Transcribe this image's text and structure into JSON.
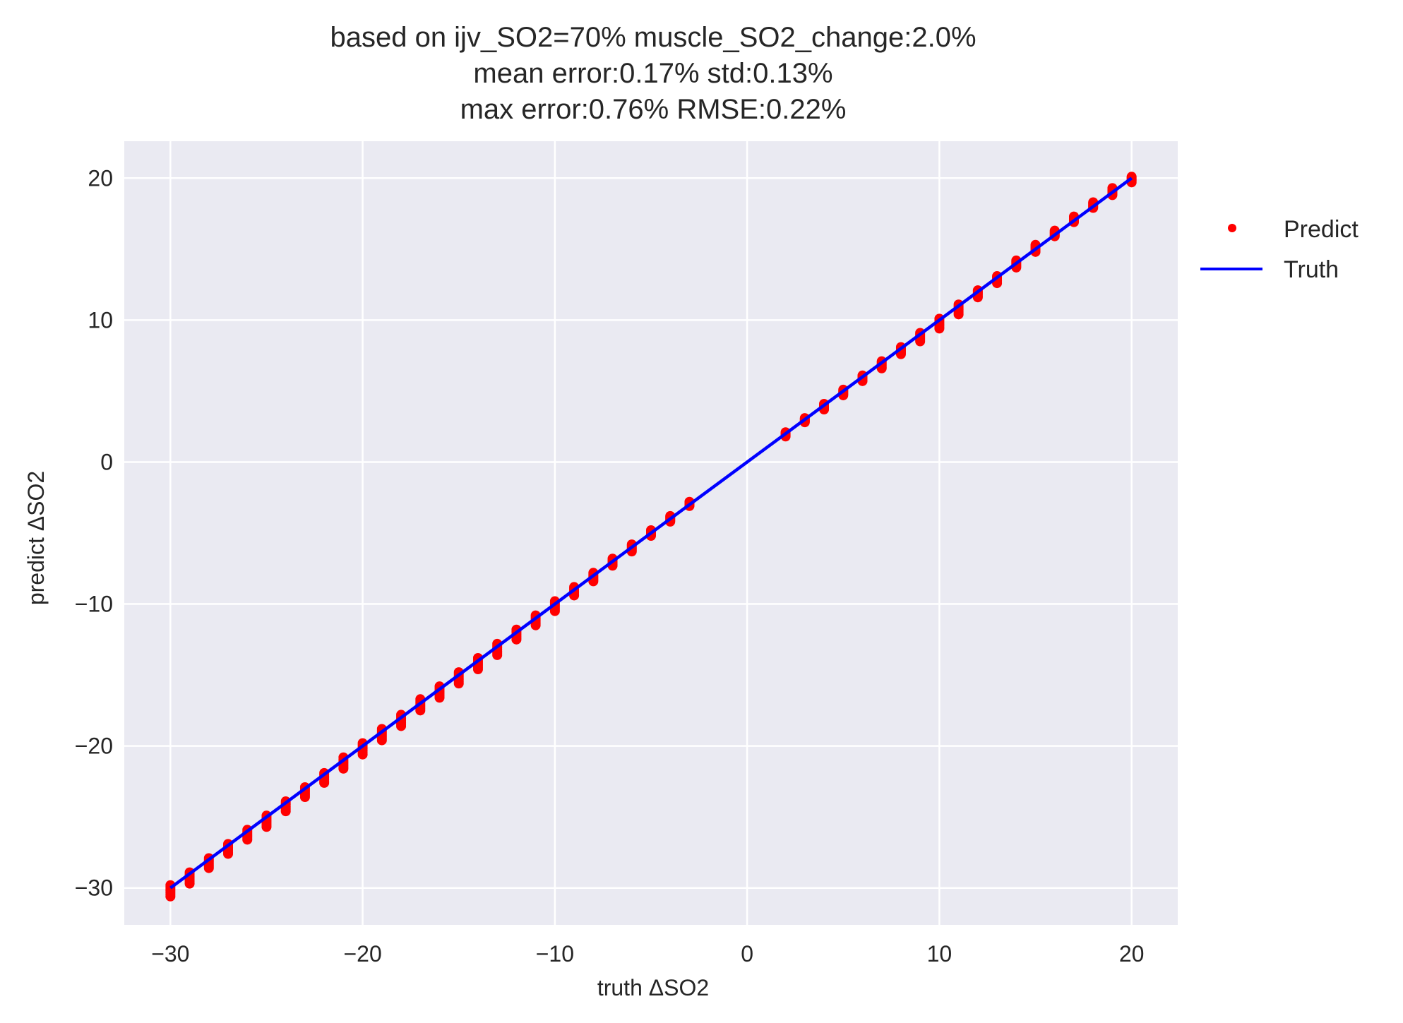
{
  "chart_data": {
    "type": "scatter",
    "title_lines": [
      "based on ijv_SO2=70% muscle_SO2_change:2.0%",
      "mean error:0.17% std:0.13%",
      "max error:0.76% RMSE:0.22%"
    ],
    "xlabel": "truth ΔSO2",
    "ylabel": "predict ΔSO2",
    "xlim": [
      -32.4,
      22.4
    ],
    "ylim": [
      -32.6,
      22.6
    ],
    "x_ticks": [
      -30,
      -20,
      -10,
      0,
      10,
      20
    ],
    "y_ticks": [
      -30,
      -20,
      -10,
      0,
      10,
      20
    ],
    "x_tick_labels": [
      "−30",
      "−20",
      "−10",
      "0",
      "10",
      "20"
    ],
    "y_tick_labels": [
      "−30",
      "−20",
      "−10",
      "0",
      "10",
      "20"
    ],
    "grid": true,
    "legend_position": "outside-right-top",
    "legend": [
      {
        "label": "Predict",
        "marker": "dot",
        "color": "#ff0000"
      },
      {
        "label": "Truth",
        "marker": "line",
        "color": "#0000ff"
      }
    ],
    "series": [
      {
        "name": "Predict",
        "kind": "scatter",
        "color": "#ff0000",
        "points": [
          {
            "x": -30,
            "y_range": [
              -30.6,
              -29.8
            ]
          },
          {
            "x": -29,
            "y_range": [
              -29.7,
              -28.9
            ]
          },
          {
            "x": -28,
            "y_range": [
              -28.6,
              -27.9
            ]
          },
          {
            "x": -27,
            "y_range": [
              -27.6,
              -26.9
            ]
          },
          {
            "x": -26,
            "y_range": [
              -26.6,
              -25.9
            ]
          },
          {
            "x": -25,
            "y_range": [
              -25.7,
              -24.9
            ]
          },
          {
            "x": -24,
            "y_range": [
              -24.6,
              -23.9
            ]
          },
          {
            "x": -23,
            "y_range": [
              -23.6,
              -22.9
            ]
          },
          {
            "x": -22,
            "y_range": [
              -22.6,
              -21.9
            ]
          },
          {
            "x": -21,
            "y_range": [
              -21.6,
              -20.8
            ]
          },
          {
            "x": -20,
            "y_range": [
              -20.6,
              -19.8
            ]
          },
          {
            "x": -19,
            "y_range": [
              -19.6,
              -18.8
            ]
          },
          {
            "x": -18,
            "y_range": [
              -18.6,
              -17.8
            ]
          },
          {
            "x": -17,
            "y_range": [
              -17.5,
              -16.7
            ]
          },
          {
            "x": -16,
            "y_range": [
              -16.6,
              -15.8
            ]
          },
          {
            "x": -15,
            "y_range": [
              -15.6,
              -14.8
            ]
          },
          {
            "x": -14,
            "y_range": [
              -14.6,
              -13.8
            ]
          },
          {
            "x": -13,
            "y_range": [
              -13.6,
              -12.8
            ]
          },
          {
            "x": -12,
            "y_range": [
              -12.5,
              -11.8
            ]
          },
          {
            "x": -11,
            "y_range": [
              -11.5,
              -10.8
            ]
          },
          {
            "x": -10,
            "y_range": [
              -10.5,
              -9.8
            ]
          },
          {
            "x": -9,
            "y_range": [
              -9.4,
              -8.8
            ]
          },
          {
            "x": -8,
            "y_range": [
              -8.4,
              -7.8
            ]
          },
          {
            "x": -7,
            "y_range": [
              -7.3,
              -6.8
            ]
          },
          {
            "x": -6,
            "y_range": [
              -6.3,
              -5.8
            ]
          },
          {
            "x": -5,
            "y_range": [
              -5.2,
              -4.8
            ]
          },
          {
            "x": -4,
            "y_range": [
              -4.2,
              -3.8
            ]
          },
          {
            "x": -3,
            "y_range": [
              -3.1,
              -2.8
            ]
          },
          {
            "x": 2,
            "y_range": [
              1.8,
              2.1
            ]
          },
          {
            "x": 3,
            "y_range": [
              2.8,
              3.1
            ]
          },
          {
            "x": 4,
            "y_range": [
              3.7,
              4.1
            ]
          },
          {
            "x": 5,
            "y_range": [
              4.7,
              5.1
            ]
          },
          {
            "x": 6,
            "y_range": [
              5.7,
              6.1
            ]
          },
          {
            "x": 7,
            "y_range": [
              6.6,
              7.1
            ]
          },
          {
            "x": 8,
            "y_range": [
              7.6,
              8.1
            ]
          },
          {
            "x": 9,
            "y_range": [
              8.5,
              9.1
            ]
          },
          {
            "x": 10,
            "y_range": [
              9.4,
              10.1
            ]
          },
          {
            "x": 11,
            "y_range": [
              10.4,
              11.1
            ]
          },
          {
            "x": 12,
            "y_range": [
              11.6,
              12.1
            ]
          },
          {
            "x": 13,
            "y_range": [
              12.6,
              13.1
            ]
          },
          {
            "x": 14,
            "y_range": [
              13.7,
              14.2
            ]
          },
          {
            "x": 15,
            "y_range": [
              14.8,
              15.3
            ]
          },
          {
            "x": 16,
            "y_range": [
              15.9,
              16.3
            ]
          },
          {
            "x": 17,
            "y_range": [
              16.9,
              17.3
            ]
          },
          {
            "x": 18,
            "y_range": [
              17.9,
              18.3
            ]
          },
          {
            "x": 19,
            "y_range": [
              18.8,
              19.3
            ]
          },
          {
            "x": 20,
            "y_range": [
              19.7,
              20.1
            ]
          }
        ]
      },
      {
        "name": "Truth",
        "kind": "line",
        "color": "#0000ff",
        "x": [
          -30,
          20
        ],
        "y": [
          -30,
          20
        ]
      }
    ]
  },
  "style": {
    "plot_background": "#eaeaf2",
    "grid_color": "#ffffff",
    "page_background": "#ffffff",
    "text_color": "#262626"
  }
}
